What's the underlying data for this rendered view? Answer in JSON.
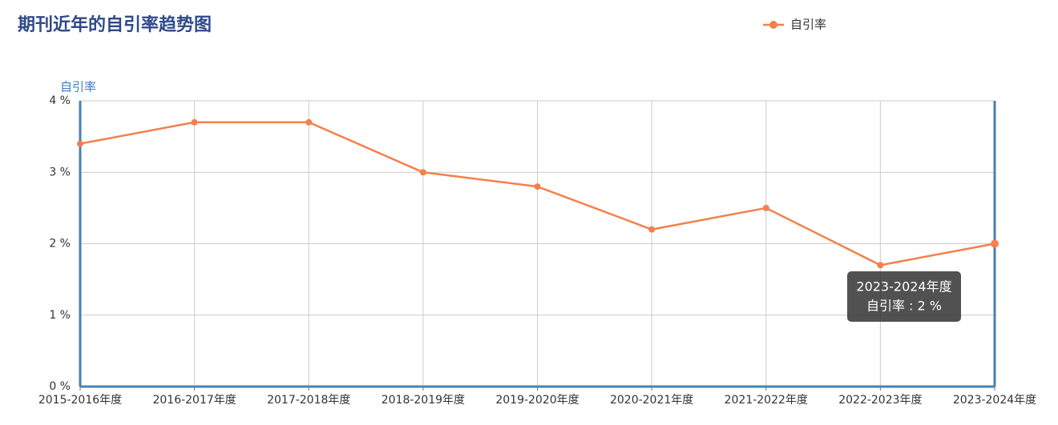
{
  "chart_data": {
    "type": "line",
    "title": "期刊近年的自引率趋势图",
    "y_label": "自引率",
    "categories": [
      "2015-2016年度",
      "2016-2017年度",
      "2017-2018年度",
      "2018-2019年度",
      "2019-2020年度",
      "2020-2021年度",
      "2021-2022年度",
      "2022-2023年度",
      "2023-2024年度"
    ],
    "series": [
      {
        "name": "自引率",
        "color": "#f5804b",
        "values": [
          3.4,
          3.7,
          3.7,
          3.0,
          2.8,
          2.2,
          2.5,
          1.7,
          2.0
        ]
      }
    ],
    "ylim": [
      0,
      4
    ],
    "yticks": [
      {
        "value": 0,
        "label": "0 %"
      },
      {
        "value": 1,
        "label": "1 %"
      },
      {
        "value": 2,
        "label": "2 %"
      },
      {
        "value": 3,
        "label": "3 %"
      },
      {
        "value": 4,
        "label": "4 %"
      }
    ],
    "grid": true,
    "legend": "top",
    "tooltip": {
      "title": "2023-2024年度",
      "text": "自引率 : 2 %"
    }
  }
}
